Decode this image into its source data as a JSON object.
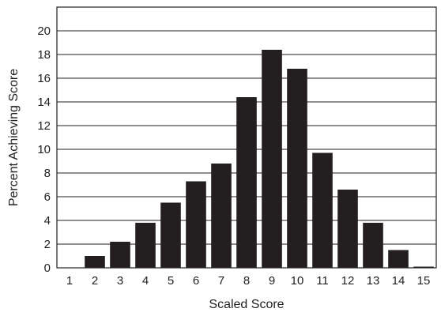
{
  "chart_data": {
    "type": "bar",
    "title": "",
    "xlabel": "Scaled Score",
    "ylabel": "Percent Achieving Score",
    "categories": [
      "1",
      "2",
      "3",
      "4",
      "5",
      "6",
      "7",
      "8",
      "9",
      "10",
      "11",
      "12",
      "13",
      "14",
      "15"
    ],
    "values": [
      0,
      1.0,
      2.2,
      3.8,
      5.5,
      7.3,
      8.8,
      14.4,
      18.4,
      16.8,
      9.7,
      6.6,
      3.8,
      1.5,
      0.1
    ],
    "ylim": [
      0,
      22
    ],
    "yticks": [
      0,
      2,
      4,
      6,
      8,
      10,
      12,
      14,
      16,
      18,
      20
    ],
    "grid": true,
    "colors": {
      "bar": "#231f20",
      "grid": "#231f20"
    }
  }
}
